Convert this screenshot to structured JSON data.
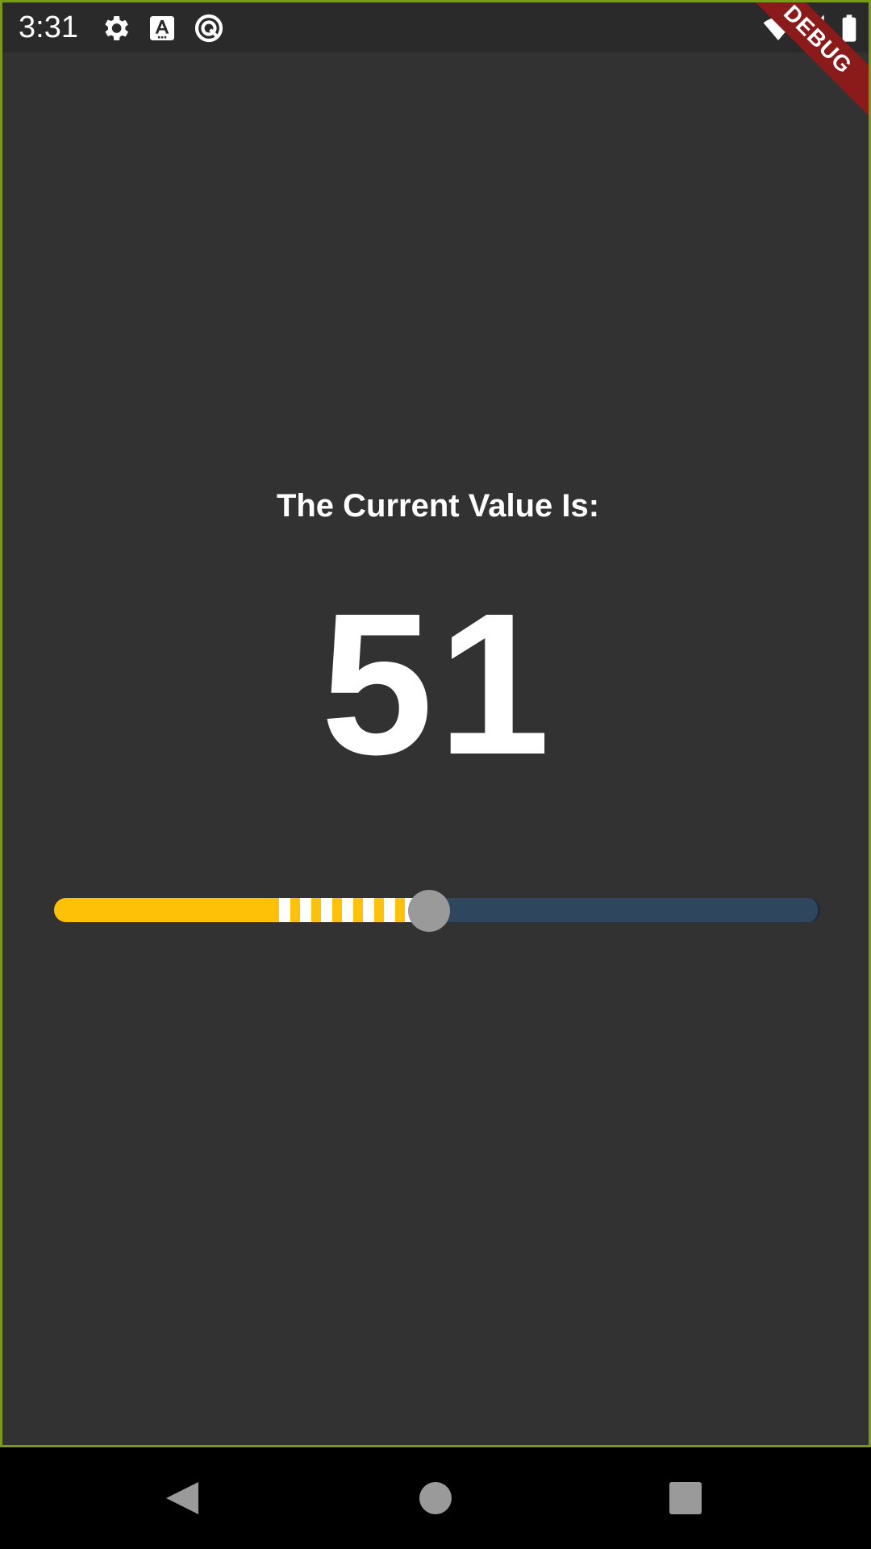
{
  "status_bar": {
    "time": "3:31",
    "left_icons": [
      "gear-icon",
      "text-a-icon",
      "circle-arrow-icon"
    ],
    "right_icons": [
      "wifi-icon",
      "signal-icon",
      "battery-icon"
    ]
  },
  "debug_banner": "DEBUG",
  "main": {
    "label": "The Current Value Is:",
    "value": "51"
  },
  "slider": {
    "value": 51,
    "min": 0,
    "max": 100,
    "active_color": "#ffc107",
    "inactive_color": "#2f475e",
    "thumb_color": "#9a9a9a",
    "tick_color": "#ffffff"
  },
  "nav_bar": {
    "buttons": [
      "back-icon",
      "home-icon",
      "recents-icon"
    ]
  },
  "colors": {
    "background": "#323232",
    "frame_border": "#7a9a1a",
    "debug_banner": "#8b1a1a"
  }
}
